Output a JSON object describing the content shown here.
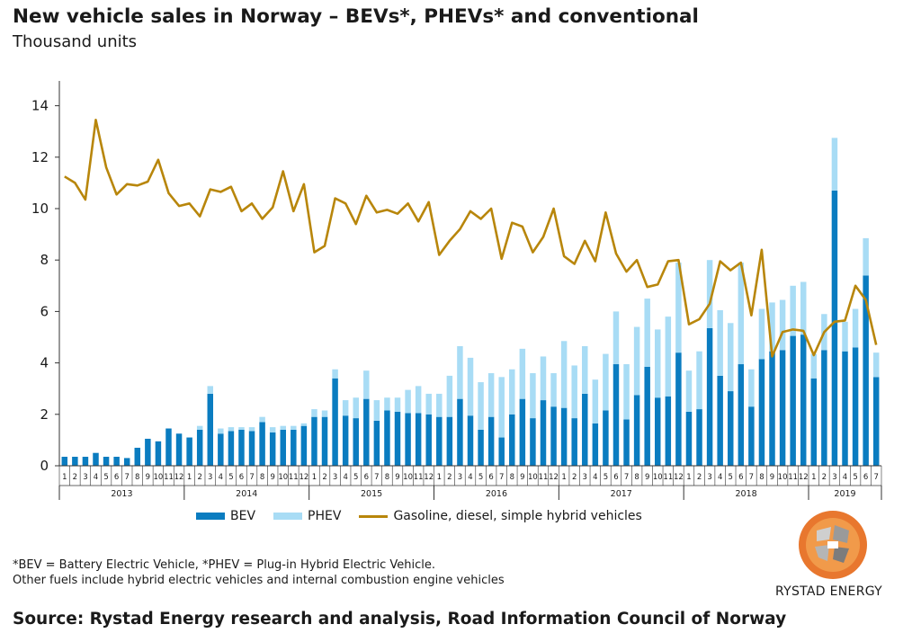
{
  "header": {
    "title": "New vehicle sales in Norway – BEVs*, PHEVs* and conventional",
    "subtitle": "Thousand units"
  },
  "legend": {
    "bev_label": "BEV",
    "phev_label": "PHEV",
    "conv_label": "Gasoline, diesel, simple hybrid vehicles"
  },
  "notes": {
    "line1": "*BEV = Battery Electric Vehicle, *PHEV = Plug-in Hybrid Electric Vehicle.",
    "line2": "Other fuels include hybrid electric vehicles and internal combustion engine vehicles"
  },
  "source": "Source: Rystad Energy research and analysis, Road Information Council of Norway",
  "brand": "RYSTAD ENERGY",
  "colors": {
    "bev": "#0a7cc0",
    "phev": "#a8dcf5",
    "conv": "#b8860b",
    "axis": "#333333"
  },
  "chart_data": {
    "type": "bar",
    "stacked": true,
    "ylim": [
      0,
      15
    ],
    "yticks": [
      0,
      2,
      4,
      6,
      8,
      10,
      12,
      14
    ],
    "years": [
      "2013",
      "2014",
      "2015",
      "2016",
      "2017",
      "2018",
      "2019"
    ],
    "categories": [
      "1",
      "2",
      "3",
      "4",
      "5",
      "6",
      "7",
      "8",
      "9",
      "10",
      "11",
      "12",
      "1",
      "2",
      "3",
      "4",
      "5",
      "6",
      "7",
      "8",
      "9",
      "10",
      "11",
      "12",
      "1",
      "2",
      "3",
      "4",
      "5",
      "6",
      "7",
      "8",
      "9",
      "10",
      "11",
      "12",
      "1",
      "2",
      "3",
      "4",
      "5",
      "6",
      "7",
      "8",
      "9",
      "10",
      "11",
      "12",
      "1",
      "2",
      "3",
      "4",
      "5",
      "6",
      "7",
      "8",
      "9",
      "10",
      "11",
      "12",
      "1",
      "2",
      "3",
      "4",
      "5",
      "6",
      "7",
      "8",
      "9",
      "10",
      "11",
      "12",
      "1",
      "2",
      "3",
      "4",
      "5",
      "6",
      "7"
    ],
    "series": [
      {
        "name": "BEV",
        "kind": "bar",
        "values": [
          0.35,
          0.35,
          0.35,
          0.5,
          0.35,
          0.35,
          0.3,
          0.7,
          1.05,
          0.95,
          1.45,
          1.25,
          1.1,
          1.4,
          2.8,
          1.25,
          1.35,
          1.4,
          1.35,
          1.7,
          1.3,
          1.4,
          1.4,
          1.55,
          1.9,
          1.9,
          3.4,
          1.95,
          1.85,
          2.6,
          1.75,
          2.15,
          2.1,
          2.05,
          2.05,
          2.0,
          1.9,
          1.9,
          2.6,
          1.95,
          1.4,
          1.9,
          1.1,
          2.0,
          2.6,
          1.85,
          2.55,
          2.3,
          2.25,
          1.85,
          2.8,
          1.65,
          2.15,
          3.95,
          1.8,
          2.75,
          3.85,
          2.65,
          2.7,
          4.4,
          2.1,
          2.2,
          5.35,
          3.5,
          2.9,
          3.95,
          2.3,
          4.15,
          4.45,
          4.5,
          5.05,
          5.1,
          3.4,
          4.5,
          10.7,
          4.45,
          4.6,
          7.4,
          3.45
        ]
      },
      {
        "name": "PHEV",
        "kind": "bar",
        "values": [
          0,
          0,
          0,
          0,
          0,
          0,
          0,
          0,
          0,
          0,
          0,
          0,
          0,
          0.15,
          0.3,
          0.2,
          0.15,
          0.1,
          0.15,
          0.2,
          0.2,
          0.15,
          0.15,
          0.1,
          0.3,
          0.25,
          0.35,
          0.6,
          0.8,
          1.1,
          0.8,
          0.5,
          0.55,
          0.9,
          1.05,
          0.8,
          0.9,
          1.6,
          2.05,
          2.25,
          1.85,
          1.7,
          2.35,
          1.75,
          1.95,
          1.75,
          1.7,
          1.3,
          2.6,
          2.05,
          1.85,
          1.7,
          2.2,
          2.05,
          2.15,
          2.65,
          2.65,
          2.65,
          3.1,
          3.5,
          1.6,
          2.25,
          2.65,
          2.55,
          2.65,
          3.95,
          1.45,
          1.95,
          1.9,
          1.95,
          1.95,
          2.05,
          0.95,
          1.4,
          2.05,
          1.15,
          1.5,
          1.45,
          0.95
        ]
      },
      {
        "name": "Gasoline, diesel, simple hybrid vehicles",
        "kind": "line",
        "values": [
          11.25,
          11.0,
          10.35,
          13.45,
          11.6,
          10.55,
          10.95,
          10.9,
          11.05,
          11.9,
          10.6,
          10.1,
          10.2,
          9.7,
          10.75,
          10.65,
          10.85,
          9.9,
          10.2,
          9.6,
          10.05,
          11.45,
          9.9,
          10.95,
          8.3,
          8.55,
          10.4,
          10.2,
          9.4,
          10.5,
          9.85,
          9.95,
          9.8,
          10.2,
          9.5,
          10.25,
          8.2,
          8.75,
          9.2,
          9.9,
          9.6,
          10.0,
          8.05,
          9.45,
          9.3,
          8.3,
          8.9,
          10.0,
          8.15,
          7.85,
          8.75,
          7.95,
          9.85,
          8.25,
          7.55,
          8.0,
          6.95,
          7.05,
          7.95,
          8.0,
          5.5,
          5.7,
          6.3,
          7.95,
          7.6,
          7.9,
          5.85,
          8.4,
          4.25,
          5.2,
          5.3,
          5.25,
          4.3,
          5.2,
          5.6,
          5.65,
          7.0,
          6.45,
          4.7
        ]
      }
    ]
  }
}
